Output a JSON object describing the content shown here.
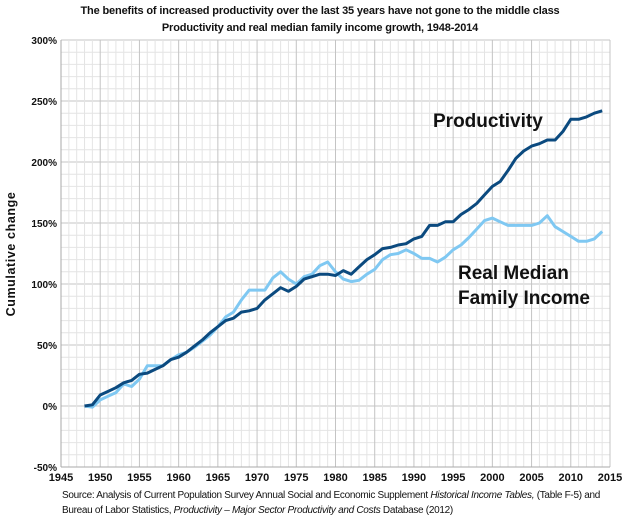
{
  "title": "The benefits of increased productivity over the last 35 years have not gone to the middle class",
  "subtitle": "Productivity and real median family income growth, 1948-2014",
  "source": {
    "line1_a": "Source:  Analysis of Current Population Survey Annual Social and Economic Supplement ",
    "line1_i": "Historical Income Tables,",
    "line1_b": " (Table F-5) and",
    "line2_a": "Bureau of Labor Statistics, ",
    "line2_i": "Productivity – Major Sector Productivity and Costs",
    "line2_b": " Database (2012)"
  },
  "chart_data": {
    "type": "line",
    "title": "Productivity and real median family income growth, 1948-2014",
    "xlabel": "",
    "ylabel": "Cumulative change",
    "xlim": [
      1945,
      2015
    ],
    "ylim": [
      -50,
      300
    ],
    "x_ticks": [
      "1945",
      "1950",
      "1955",
      "1960",
      "1965",
      "1970",
      "1975",
      "1980",
      "1985",
      "1990",
      "1995",
      "2000",
      "2005",
      "2010",
      "2015"
    ],
    "y_ticks": [
      "-50%",
      "0%",
      "50%",
      "100%",
      "150%",
      "200%",
      "250%",
      "300%"
    ],
    "grid": true,
    "x_start": 1948,
    "series": [
      {
        "name": "Productivity",
        "color": "#0b4a7f",
        "values": [
          0,
          1,
          9,
          12,
          15,
          19,
          21,
          26,
          27,
          30,
          33,
          38,
          40,
          44,
          49,
          54,
          60,
          65,
          70,
          72,
          77,
          78,
          80,
          87,
          92,
          97,
          94,
          98,
          104,
          106,
          108,
          108,
          107,
          111,
          108,
          114,
          120,
          124,
          129,
          130,
          132,
          133,
          137,
          139,
          148,
          148,
          151,
          151,
          157,
          161,
          166,
          173,
          180,
          184,
          193,
          203,
          209,
          213,
          215,
          218,
          218,
          225,
          235,
          235,
          237,
          240,
          242
        ]
      },
      {
        "name": "Real Median Family Income",
        "color": "#7fc8f2",
        "values": [
          0,
          -1,
          5,
          8,
          11,
          18,
          16,
          22,
          33,
          33,
          33,
          38,
          42,
          44,
          48,
          53,
          58,
          65,
          73,
          77,
          87,
          95,
          95,
          95,
          105,
          110,
          104,
          100,
          106,
          108,
          115,
          118,
          110,
          104,
          102,
          103,
          108,
          112,
          120,
          124,
          125,
          128,
          125,
          121,
          121,
          118,
          122,
          128,
          132,
          138,
          145,
          152,
          154,
          151,
          148,
          148,
          148,
          148,
          150,
          156,
          147,
          143,
          139,
          135,
          135,
          137,
          143
        ]
      }
    ]
  }
}
